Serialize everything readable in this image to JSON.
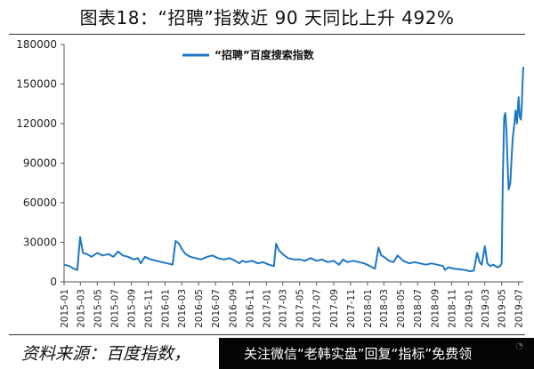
{
  "title": "图表18：“招聘”指数近 90 天同比上升 492%",
  "source": "资料来源：百度指数，",
  "watermark": {
    "text": "关注微信“老韩实盘”回复“指标”免费领",
    "icon": "wechat-icon"
  },
  "chart_data": {
    "type": "line",
    "title": "图表18：“招聘”指数近 90 天同比上升 492%",
    "xlabel": "",
    "ylabel": "",
    "ylim": [
      0,
      180000
    ],
    "yticks": [
      0,
      30000,
      60000,
      90000,
      120000,
      150000,
      180000
    ],
    "xtick_labels": [
      "2015-01",
      "2015-03",
      "2015-05",
      "2015-07",
      "2015-09",
      "2015-11",
      "2016-01",
      "2016-03",
      "2016-05",
      "2016-07",
      "2016-09",
      "2016-11",
      "2017-01",
      "2017-03",
      "2017-05",
      "2017-07",
      "2017-09",
      "2017-11",
      "2018-01",
      "2018-03",
      "2018-05",
      "2018-07",
      "2018-09",
      "2018-11",
      "2019-01",
      "2019-03",
      "2019-05",
      "2019-07"
    ],
    "legend": {
      "position": "top-center",
      "entries": [
        "“招聘”百度搜索指数"
      ]
    },
    "grid": false,
    "series": [
      {
        "name": "“招聘”百度搜索指数",
        "color": "#1f77c4",
        "x": [
          "2015-01-01",
          "2015-01-20",
          "2015-02-05",
          "2015-02-18",
          "2015-02-28",
          "2015-03-10",
          "2015-03-25",
          "2015-04-10",
          "2015-05-01",
          "2015-05-20",
          "2015-06-10",
          "2015-06-28",
          "2015-07-15",
          "2015-08-01",
          "2015-08-20",
          "2015-09-10",
          "2015-09-25",
          "2015-10-05",
          "2015-10-20",
          "2015-11-10",
          "2015-12-01",
          "2015-12-20",
          "2016-01-10",
          "2016-01-28",
          "2016-02-08",
          "2016-02-20",
          "2016-03-01",
          "2016-03-15",
          "2016-04-01",
          "2016-04-20",
          "2016-05-10",
          "2016-06-01",
          "2016-06-20",
          "2016-07-10",
          "2016-08-01",
          "2016-08-20",
          "2016-09-10",
          "2016-09-25",
          "2016-10-05",
          "2016-10-20",
          "2016-11-10",
          "2016-12-01",
          "2016-12-20",
          "2017-01-10",
          "2017-01-28",
          "2017-02-05",
          "2017-02-15",
          "2017-03-01",
          "2017-03-20",
          "2017-04-10",
          "2017-05-01",
          "2017-05-20",
          "2017-06-10",
          "2017-07-01",
          "2017-07-20",
          "2017-08-10",
          "2017-09-01",
          "2017-09-20",
          "2017-10-05",
          "2017-10-20",
          "2017-11-10",
          "2017-12-01",
          "2017-12-20",
          "2018-01-10",
          "2018-01-28",
          "2018-02-10",
          "2018-02-20",
          "2018-03-01",
          "2018-03-20",
          "2018-04-05",
          "2018-04-20",
          "2018-05-10",
          "2018-06-01",
          "2018-06-20",
          "2018-07-10",
          "2018-08-01",
          "2018-08-20",
          "2018-09-10",
          "2018-10-01",
          "2018-10-08",
          "2018-10-20",
          "2018-11-10",
          "2018-12-01",
          "2018-12-20",
          "2019-01-05",
          "2019-01-20",
          "2019-02-01",
          "2019-02-10",
          "2019-02-18",
          "2019-03-01",
          "2019-03-10",
          "2019-03-20",
          "2019-04-01",
          "2019-04-15",
          "2019-04-25",
          "2019-05-01",
          "2019-05-05",
          "2019-05-10",
          "2019-05-14",
          "2019-05-18",
          "2019-05-22",
          "2019-05-26",
          "2019-06-01",
          "2019-06-06",
          "2019-06-10",
          "2019-06-15",
          "2019-06-20",
          "2019-06-25",
          "2019-07-01",
          "2019-07-05",
          "2019-07-09",
          "2019-07-12",
          "2019-07-15",
          "2019-07-18"
        ],
        "y": [
          13000,
          12000,
          10000,
          9000,
          34000,
          22000,
          21000,
          19000,
          22000,
          20000,
          21000,
          19000,
          23000,
          20000,
          19000,
          17000,
          18000,
          14000,
          19000,
          17000,
          16000,
          15000,
          14000,
          13000,
          31000,
          29000,
          25000,
          21000,
          19000,
          18000,
          17000,
          19000,
          20000,
          18000,
          17000,
          18000,
          16000,
          14000,
          16000,
          15000,
          16000,
          14000,
          15000,
          13000,
          12000,
          29000,
          24000,
          21000,
          18000,
          17000,
          17000,
          16000,
          18000,
          16000,
          17000,
          15000,
          16000,
          13000,
          17000,
          15000,
          16000,
          15000,
          14000,
          12000,
          10000,
          26000,
          20000,
          19000,
          16000,
          15000,
          20000,
          16000,
          14000,
          15000,
          14000,
          13000,
          14000,
          13000,
          12000,
          9000,
          11000,
          10000,
          9500,
          9000,
          8000,
          8500,
          22000,
          15000,
          13000,
          27000,
          14000,
          12000,
          13000,
          11000,
          12000,
          14000,
          80000,
          125000,
          128000,
          115000,
          90000,
          70000,
          75000,
          95000,
          110000,
          118000,
          130000,
          120000,
          140000,
          125000,
          123000,
          130000,
          150000,
          163000
        ]
      }
    ],
    "annotations": [],
    "note": ""
  }
}
